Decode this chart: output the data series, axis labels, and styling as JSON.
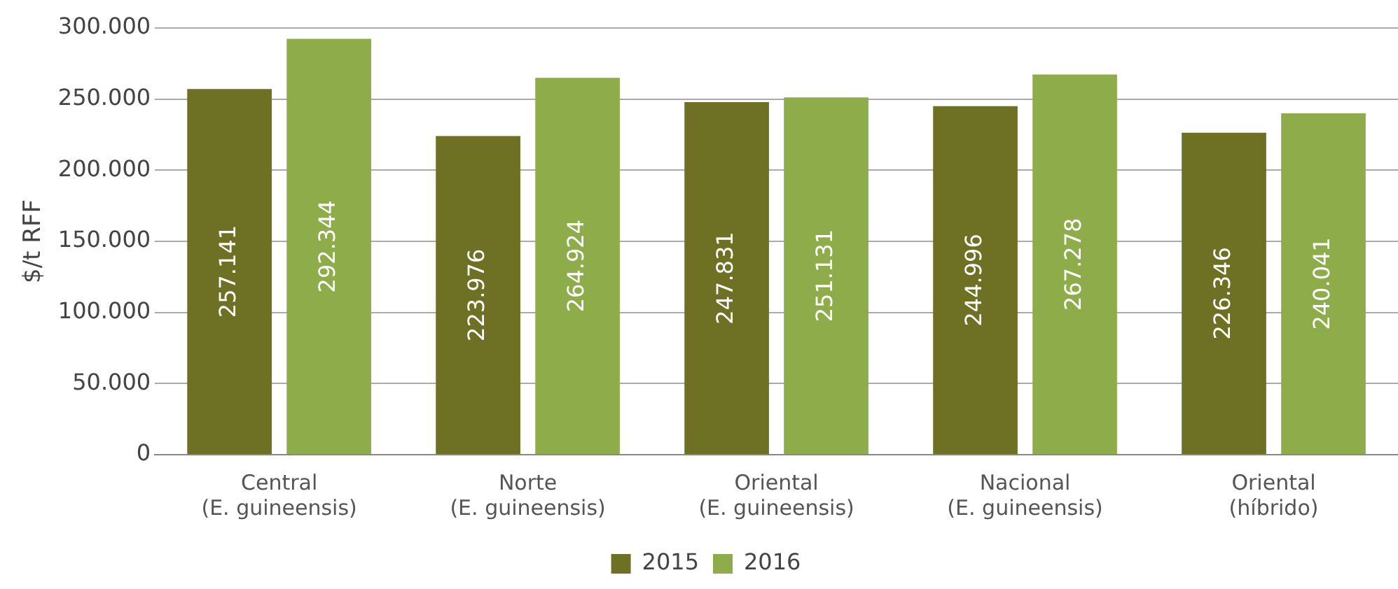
{
  "chart_data": {
    "type": "bar",
    "ylabel": "$/t RFF",
    "categories": [
      "Central\n(E. guineensis)",
      "Norte\n(E. guineensis)",
      "Oriental\n(E. guineensis)",
      "Nacional\n(E. guineensis)",
      "Oriental\n(híbrido)"
    ],
    "series": [
      {
        "name": "2015",
        "color": "#6e7023",
        "values": [
          257141,
          223976,
          247831,
          244996,
          226346
        ],
        "value_labels": [
          "257.141",
          "223.976",
          "247.831",
          "244.996",
          "226.346"
        ]
      },
      {
        "name": "2016",
        "color": "#8fac4a",
        "values": [
          292344,
          264924,
          251131,
          267278,
          240041
        ],
        "value_labels": [
          "292.344",
          "264.924",
          "251.131",
          "267.278",
          "240.041"
        ]
      }
    ],
    "ylim": [
      0,
      300000
    ],
    "yticks": [
      0,
      {
        "value": 50000,
        "label": "50.000"
      },
      {
        "value": 100000,
        "label": "100.000"
      },
      {
        "value": 150000,
        "label": "150.000"
      },
      {
        "value": 200000,
        "label": "200.000"
      },
      {
        "value": 250000,
        "label": "250.000"
      },
      {
        "value": 300000,
        "label": "300.000"
      }
    ],
    "grid": "y",
    "legend": "bottom"
  }
}
